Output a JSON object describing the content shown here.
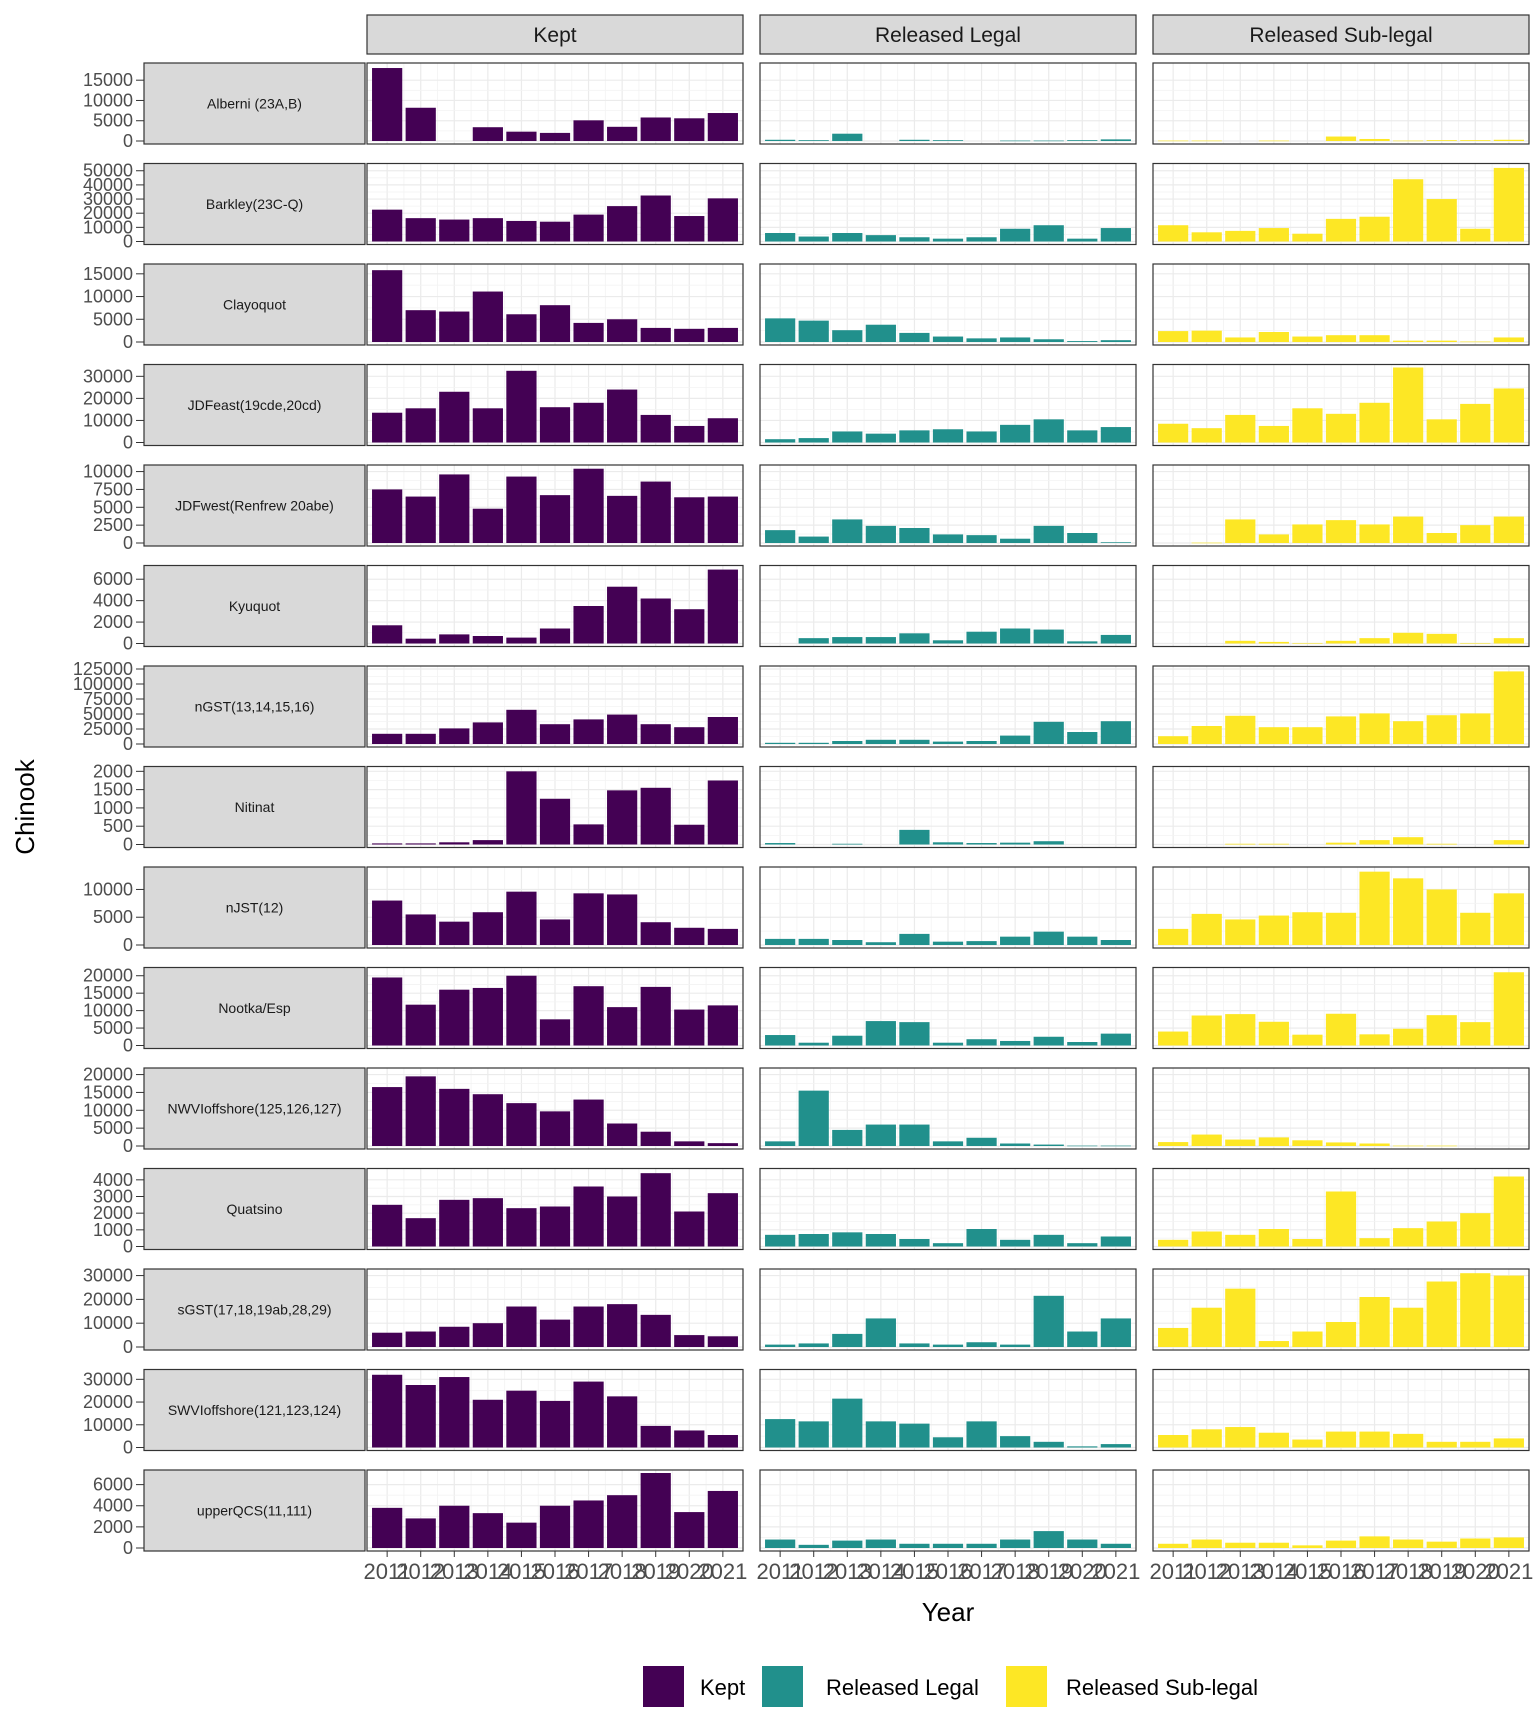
{
  "chart_data": {
    "type": "bar",
    "xlabel": "Year",
    "ylabel": "Chinook",
    "years": [
      "2011",
      "2012",
      "2013",
      "2014",
      "2015",
      "2016",
      "2017",
      "2018",
      "2019",
      "2020",
      "2021"
    ],
    "columns": [
      {
        "name": "Kept",
        "color": "#440154"
      },
      {
        "name": "Released Legal",
        "color": "#21908C"
      },
      {
        "name": "Released Sub-legal",
        "color": "#FDE725"
      }
    ],
    "legend": {
      "position": "bottom",
      "labels": [
        "Kept",
        "Released Legal",
        "Released Sub-legal"
      ]
    },
    "grid": true,
    "rows": [
      {
        "label": "Alberni (23A,B)",
        "ticks": [
          0,
          5000,
          10000,
          15000
        ],
        "ymax": 18500,
        "kept": [
          18000,
          8200,
          0,
          3400,
          2300,
          2000,
          5100,
          3500,
          5800,
          5600,
          6900
        ],
        "released_legal": [
          300,
          200,
          1800,
          0,
          300,
          200,
          0,
          100,
          100,
          200,
          400
        ],
        "released_sublegal": [
          100,
          100,
          0,
          100,
          0,
          1100,
          500,
          100,
          200,
          200,
          300
        ]
      },
      {
        "label": "Barkley(23C-Q)",
        "ticks": [
          0,
          10000,
          20000,
          30000,
          40000,
          50000
        ],
        "ymax": 53000,
        "kept": [
          22500,
          16500,
          15500,
          16500,
          14500,
          14000,
          19000,
          25000,
          32500,
          18000,
          30500
        ],
        "released_legal": [
          6000,
          3500,
          6000,
          4500,
          3000,
          2000,
          3000,
          9000,
          11500,
          2000,
          9500
        ],
        "released_sublegal": [
          11500,
          6500,
          7500,
          9500,
          5500,
          16000,
          17500,
          44000,
          30000,
          9000,
          52000
        ]
      },
      {
        "label": "Clayoquot",
        "ticks": [
          0,
          5000,
          10000,
          15000
        ],
        "ymax": 16500,
        "kept": [
          15800,
          7000,
          6700,
          11100,
          6100,
          8100,
          4200,
          5000,
          3100,
          2900,
          3100
        ],
        "released_legal": [
          5200,
          4700,
          2600,
          3800,
          2000,
          1200,
          800,
          1000,
          600,
          200,
          400
        ],
        "released_sublegal": [
          2400,
          2500,
          1000,
          2200,
          1200,
          1500,
          1500,
          300,
          300,
          100,
          1000
        ]
      },
      {
        "label": "JDFeast(19cde,20cd)",
        "ticks": [
          0,
          10000,
          20000,
          30000
        ],
        "ymax": 34000,
        "kept": [
          13500,
          15500,
          23000,
          15500,
          32500,
          16000,
          18000,
          24000,
          12500,
          7500,
          11000
        ],
        "released_legal": [
          1500,
          2000,
          5000,
          4000,
          5500,
          6000,
          5000,
          8000,
          10500,
          5500,
          7000
        ],
        "released_sublegal": [
          8500,
          6500,
          12500,
          7500,
          15500,
          13000,
          18000,
          34000,
          10500,
          17500,
          24500
        ]
      },
      {
        "label": "JDFwest(Renfrew 20abe)",
        "ticks": [
          0,
          2500,
          5000,
          7500,
          10000
        ],
        "ymax": 10500,
        "kept": [
          7500,
          6500,
          9600,
          4800,
          9300,
          6700,
          10400,
          6600,
          8600,
          6400,
          6500
        ],
        "released_legal": [
          1800,
          900,
          3300,
          2400,
          2100,
          1200,
          1100,
          600,
          2400,
          1400,
          100
        ],
        "released_sublegal": [
          0,
          50,
          3300,
          1200,
          2600,
          3200,
          2600,
          3700,
          1400,
          2500,
          3700
        ]
      },
      {
        "label": "Kyuquot",
        "ticks": [
          0,
          2000,
          4000,
          6000
        ],
        "ymax": 7000,
        "kept": [
          1700,
          450,
          850,
          700,
          550,
          1400,
          3500,
          5300,
          4200,
          3200,
          6900
        ],
        "released_legal": [
          0,
          500,
          600,
          600,
          950,
          300,
          1100,
          1400,
          1300,
          200,
          800
        ],
        "released_sublegal": [
          0,
          0,
          250,
          150,
          50,
          250,
          500,
          1000,
          900,
          50,
          500
        ]
      },
      {
        "label": "nGST(13,14,15,16)",
        "ticks": [
          0,
          25000,
          50000,
          75000,
          100000,
          125000
        ],
        "ymax": 125000,
        "kept": [
          17000,
          17000,
          26000,
          36000,
          57000,
          33000,
          41000,
          49000,
          33000,
          28000,
          45000
        ],
        "released_legal": [
          2000,
          2000,
          5000,
          7000,
          7000,
          4000,
          5000,
          14000,
          37000,
          20000,
          38000
        ],
        "released_sublegal": [
          13000,
          30000,
          47000,
          28000,
          28000,
          46000,
          51000,
          38000,
          48000,
          51000,
          121000
        ]
      },
      {
        "label": "Nitinat",
        "ticks": [
          0,
          500,
          1000,
          1500,
          2000
        ],
        "ymax": 2050,
        "kept": [
          30,
          30,
          60,
          120,
          2000,
          1250,
          550,
          1480,
          1550,
          540,
          1750
        ],
        "released_legal": [
          40,
          0,
          20,
          0,
          400,
          60,
          40,
          50,
          90,
          0,
          0
        ],
        "released_sublegal": [
          0,
          0,
          20,
          20,
          0,
          50,
          120,
          200,
          20,
          0,
          120
        ]
      },
      {
        "label": "nJST(12)",
        "ticks": [
          0,
          5000,
          10000
        ],
        "ymax": 13500,
        "kept": [
          8000,
          5500,
          4200,
          5900,
          9600,
          4600,
          9300,
          9100,
          4100,
          3100,
          2900
        ],
        "released_legal": [
          1100,
          1100,
          900,
          500,
          2000,
          600,
          700,
          1500,
          2400,
          1500,
          900
        ],
        "released_sublegal": [
          2900,
          5600,
          4600,
          5300,
          5900,
          5800,
          13200,
          12000,
          10000,
          5800,
          9300
        ]
      },
      {
        "label": "Nootka/Esp",
        "ticks": [
          0,
          5000,
          10000,
          15000,
          20000
        ],
        "ymax": 21500,
        "kept": [
          19500,
          11700,
          16000,
          16500,
          20000,
          7500,
          17000,
          11000,
          16800,
          10300,
          11500
        ],
        "released_legal": [
          3000,
          800,
          2800,
          7000,
          6700,
          800,
          1800,
          1300,
          2500,
          1000,
          3400
        ],
        "released_sublegal": [
          4000,
          8600,
          9000,
          6800,
          3100,
          9100,
          3200,
          4800,
          8700,
          6700,
          21000
        ]
      },
      {
        "label": "NWVIoffshore(125,126,127)",
        "ticks": [
          0,
          5000,
          10000,
          15000,
          20000
        ],
        "ymax": 21000,
        "kept": [
          16500,
          19500,
          16000,
          14500,
          12000,
          9700,
          13000,
          6300,
          4000,
          1300,
          800
        ],
        "released_legal": [
          1300,
          15500,
          4500,
          6000,
          6000,
          1300,
          2300,
          700,
          400,
          100,
          100
        ],
        "released_sublegal": [
          1100,
          3200,
          1800,
          2400,
          1600,
          1000,
          700,
          100,
          100,
          0,
          0
        ]
      },
      {
        "label": "Quatsino",
        "ticks": [
          0,
          1000,
          2000,
          3000,
          4000
        ],
        "ymax": 4500,
        "kept": [
          2500,
          1700,
          2800,
          2900,
          2300,
          2400,
          3600,
          3000,
          4400,
          2100,
          3200
        ],
        "released_legal": [
          700,
          750,
          850,
          750,
          450,
          200,
          1050,
          400,
          700,
          200,
          600
        ],
        "released_sublegal": [
          400,
          900,
          700,
          1050,
          450,
          3300,
          500,
          1100,
          1500,
          2000,
          4200
        ]
      },
      {
        "label": "sGST(17,18,19ab,28,29)",
        "ticks": [
          0,
          10000,
          20000,
          30000
        ],
        "ymax": 31500,
        "kept": [
          6000,
          6500,
          8500,
          10000,
          17000,
          11500,
          17000,
          18000,
          13500,
          5000,
          4500
        ],
        "released_legal": [
          1000,
          1500,
          5500,
          12000,
          1500,
          1000,
          2000,
          1000,
          21500,
          6500,
          12000
        ],
        "released_sublegal": [
          8000,
          16500,
          24500,
          2500,
          6500,
          10500,
          21000,
          16500,
          27500,
          31000,
          30000
        ]
      },
      {
        "label": "SWVIoffshore(121,123,124)",
        "ticks": [
          0,
          10000,
          20000,
          30000
        ],
        "ymax": 33000,
        "kept": [
          32000,
          27500,
          31000,
          21000,
          25000,
          20500,
          29000,
          22500,
          9500,
          7500,
          5500
        ],
        "released_legal": [
          12500,
          11500,
          21500,
          11500,
          10500,
          4500,
          11500,
          5000,
          2500,
          500,
          1500
        ],
        "released_sublegal": [
          5500,
          8000,
          9000,
          6500,
          3500,
          7000,
          7000,
          6000,
          2500,
          2500,
          4000
        ]
      },
      {
        "label": "upperQCS(11,111)",
        "ticks": [
          0,
          2000,
          4000,
          6000
        ],
        "ymax": 7100,
        "kept": [
          3800,
          2800,
          4000,
          3300,
          2400,
          4000,
          4500,
          5000,
          7100,
          3400,
          5400
        ],
        "released_legal": [
          800,
          300,
          700,
          800,
          400,
          400,
          400,
          800,
          1600,
          800,
          400
        ],
        "released_sublegal": [
          400,
          800,
          500,
          500,
          250,
          700,
          1100,
          800,
          600,
          900,
          1000
        ]
      }
    ]
  }
}
